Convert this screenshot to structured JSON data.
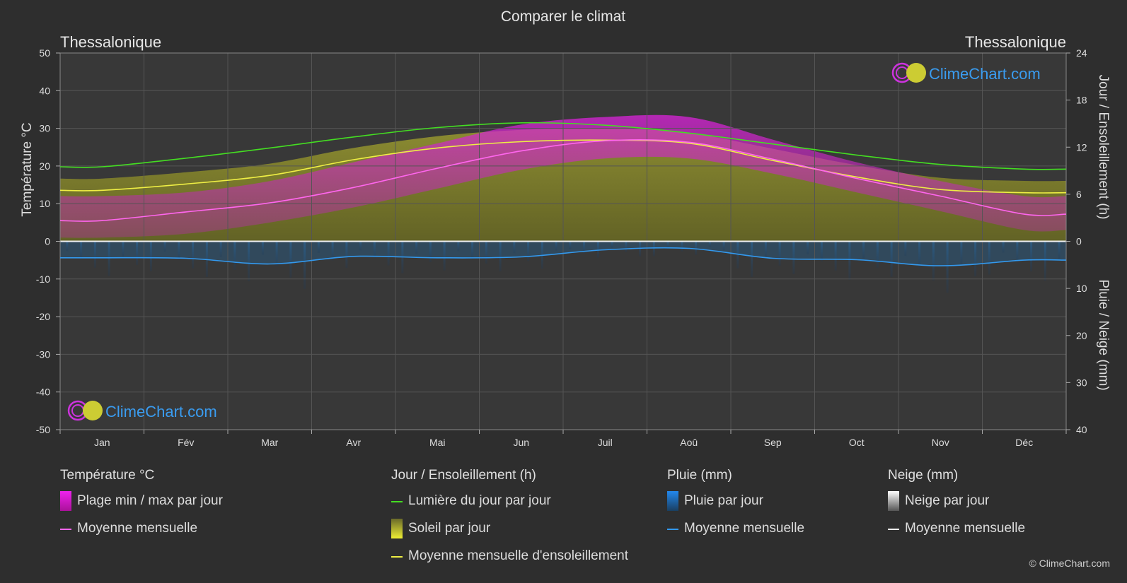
{
  "title": "Comparer le climat",
  "location_left": "Thessalonique",
  "location_right": "Thessalonique",
  "watermark": "ClimeChart.com",
  "copyright": "© ClimeChart.com",
  "colors": {
    "background": "#2e2e2e",
    "daylight": "#44dd22",
    "sunshine_avg": "#eeee44",
    "sunshine_fill": "#8a8a2a",
    "temp_range": "#cc22cc",
    "temp_avg": "#ff66ee",
    "rain": "#2288dd",
    "rain_avg": "#3399ee",
    "snow": "#cccccc",
    "watermark": "#3a9cf0"
  },
  "legend": {
    "temp": {
      "header": "Température °C",
      "range": "Plage min / max par jour",
      "avg": "Moyenne mensuelle"
    },
    "sun": {
      "header": "Jour / Ensoleillement (h)",
      "daylight": "Lumière du jour par jour",
      "sunshine": "Soleil par jour",
      "avg": "Moyenne mensuelle d'ensoleillement"
    },
    "rain": {
      "header": "Pluie (mm)",
      "per_day": "Pluie par jour",
      "avg": "Moyenne mensuelle"
    },
    "snow": {
      "header": "Neige (mm)",
      "per_day": "Neige par jour",
      "avg": "Moyenne mensuelle"
    }
  },
  "chart_data": {
    "type": "line",
    "title": "Comparer le climat",
    "categories": [
      "Jan",
      "Fév",
      "Mar",
      "Avr",
      "Mai",
      "Jun",
      "Juil",
      "Aoû",
      "Sep",
      "Oct",
      "Nov",
      "Déc"
    ],
    "y_left": {
      "label": "Température °C",
      "min": -50,
      "max": 50,
      "ticks": [
        50,
        40,
        30,
        20,
        10,
        0,
        -10,
        -20,
        -30,
        -40,
        -50
      ]
    },
    "y_right_top": {
      "label": "Jour / Ensoleillement (h)",
      "min": 0,
      "max": 24,
      "ticks": [
        24,
        18,
        12,
        6,
        0
      ]
    },
    "y_right_bottom": {
      "label": "Pluie / Neige (mm)",
      "min": 0,
      "max": 40,
      "ticks": [
        0,
        10,
        20,
        30,
        40
      ]
    },
    "grid": true,
    "series": [
      {
        "name": "Lumière du jour par jour",
        "axis": "hours",
        "values": [
          9.5,
          10.6,
          11.9,
          13.3,
          14.5,
          15.1,
          14.8,
          13.8,
          12.4,
          11.0,
          9.8,
          9.2
        ]
      },
      {
        "name": "Moyenne mensuelle d'ensoleillement",
        "axis": "hours",
        "values": [
          6.5,
          7.3,
          8.4,
          10.4,
          11.9,
          12.7,
          12.9,
          12.5,
          10.3,
          8.2,
          6.6,
          6.2
        ]
      },
      {
        "name": "Moyenne mensuelle",
        "axis": "temperature",
        "values": [
          5.5,
          7.8,
          10.2,
          14.3,
          19.4,
          24.0,
          26.7,
          26.3,
          21.8,
          16.7,
          12.0,
          7.2
        ]
      },
      {
        "name": "Plage min / max par jour",
        "axis": "temperature",
        "min": [
          1,
          2,
          5,
          9,
          14,
          19,
          22,
          22,
          18,
          13,
          8,
          3
        ],
        "max": [
          12,
          13,
          16,
          21,
          26,
          31,
          33,
          33,
          27,
          21,
          16,
          12
        ]
      },
      {
        "name": "Pluie moyenne mensuelle",
        "axis": "rain",
        "values": [
          3.5,
          3.6,
          4.8,
          3.2,
          3.5,
          3.3,
          1.8,
          1.5,
          3.6,
          3.9,
          5.2,
          4.0
        ]
      }
    ]
  }
}
